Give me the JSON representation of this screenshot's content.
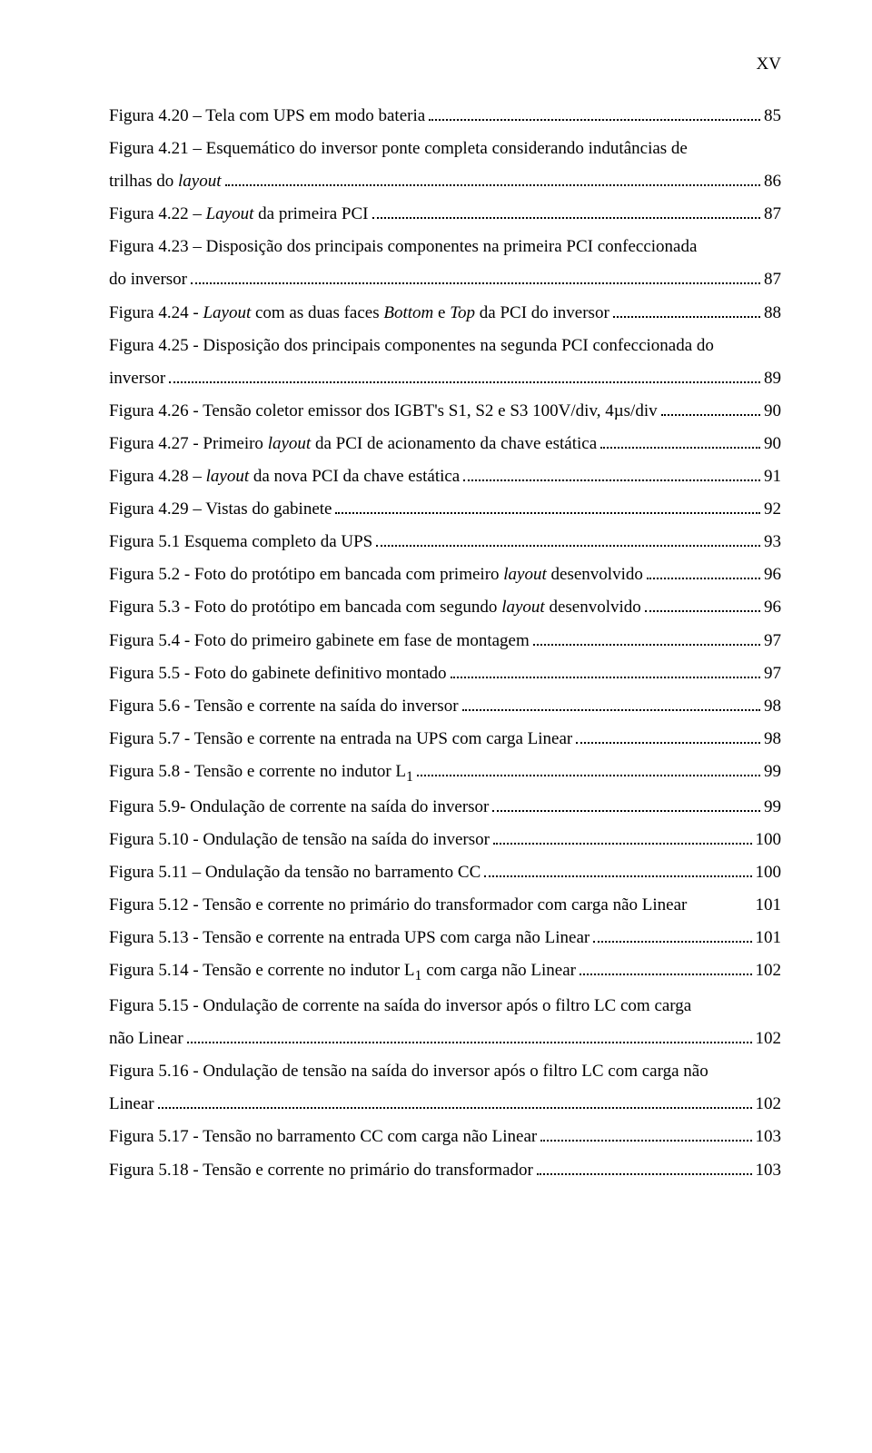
{
  "page_number": "XV",
  "font": {
    "family": "Times New Roman",
    "body_size_pt": 14,
    "line_height": 1.9,
    "text_color": "#000000",
    "background_color": "#ffffff"
  },
  "entries": [
    {
      "label": "Figura 4.20 – Tela com UPS em modo bateria",
      "page": "85",
      "multiline": false
    },
    {
      "label_first": "Figura 4.21 – Esquemático do inversor ponte completa considerando indutâncias de",
      "label_last": "trilhas do ",
      "label_last_italic": "layout",
      "page": "86",
      "multiline": true
    },
    {
      "label_pre": "Figura 4.22 – ",
      "label_italic": "Layout",
      "label_post": " da primeira PCI",
      "page": "87",
      "multiline": false
    },
    {
      "label_first": "Figura 4.23 – Disposição dos principais componentes na primeira PCI confeccionada",
      "label_last": "do inversor",
      "page": "87",
      "multiline": true
    },
    {
      "label_pre": "Figura 4.24 - ",
      "label_italic": "Layout",
      "label_post_pre": " com as duas faces ",
      "label_italic2": "Bottom",
      "label_post_mid": " e ",
      "label_italic3": "Top",
      "label_post_end": " da PCI do inversor",
      "page": "88",
      "multiline": false
    },
    {
      "label_first": "Figura 4.25 - Disposição dos principais componentes na segunda PCI confeccionada do",
      "label_last": "inversor",
      "page": "89",
      "multiline": true
    },
    {
      "label": "Figura 4.26 -  Tensão coletor emissor dos IGBT's S1, S2 e S3 100V/div, 4µs/div",
      "page": "90",
      "multiline": false
    },
    {
      "label_pre": "Figura 4.27 -  Primeiro ",
      "label_italic": "layout",
      "label_post": " da PCI de acionamento da chave estática",
      "page": "90",
      "multiline": false
    },
    {
      "label_pre": "Figura 4.28 – ",
      "label_italic": "layout",
      "label_post": " da nova PCI da chave estática",
      "page": "91",
      "multiline": false
    },
    {
      "label": "Figura 4.29 – Vistas do gabinete",
      "page": "92",
      "multiline": false
    },
    {
      "label": "Figura 5.1 Esquema completo da UPS",
      "page": "93",
      "multiline": false
    },
    {
      "label_pre": "Figura 5.2 - Foto do protótipo em bancada com primeiro ",
      "label_italic": "layout",
      "label_post": " desenvolvido",
      "page": "96",
      "multiline": false
    },
    {
      "label_pre": "Figura 5.3 - Foto do protótipo em bancada com segundo ",
      "label_italic": "layout",
      "label_post": " desenvolvido",
      "page": "96",
      "multiline": false
    },
    {
      "label": "Figura 5.4 - Foto do primeiro gabinete em fase de montagem",
      "page": "97",
      "multiline": false
    },
    {
      "label": "Figura 5.5 - Foto do gabinete definitivo montado",
      "page": "97",
      "multiline": false
    },
    {
      "label": "Figura 5.6 - Tensão e corrente na saída do inversor",
      "page": "98",
      "multiline": false
    },
    {
      "label": "Figura 5.7 - Tensão e corrente na entrada na UPS com carga Linear",
      "page": "98",
      "multiline": false
    },
    {
      "label_pre": "Figura 5.8 - Tensão e corrente no indutor L",
      "label_sub": "1",
      "page": "99",
      "multiline": false
    },
    {
      "label": "Figura 5.9- Ondulação de corrente na saída do inversor",
      "page": "99",
      "multiline": false
    },
    {
      "label": "Figura 5.10 - Ondulação de tensão na saída do inversor",
      "page": "100",
      "multiline": false
    },
    {
      "label": "Figura 5.11 – Ondulação da tensão no barramento CC",
      "page": "100",
      "multiline": false
    },
    {
      "label": "Figura 5.12 - Tensão e corrente no primário do transformador com carga não Linear",
      "page": "101",
      "multiline": false,
      "tight": true
    },
    {
      "label": "Figura 5.13 - Tensão e corrente na entrada UPS com carga não Linear",
      "page": "101",
      "multiline": false
    },
    {
      "label_pre": "Figura 5.14 - Tensão e corrente no indutor L",
      "label_sub": "1",
      "label_post": " com carga não Linear",
      "page": "102",
      "multiline": false
    },
    {
      "label_first": "Figura 5.15 - Ondulação de corrente na saída do inversor após o filtro LC com carga",
      "label_last": "não Linear",
      "page": "102",
      "multiline": true
    },
    {
      "label_first": "Figura 5.16 - Ondulação de tensão na saída do inversor após o filtro LC com carga não",
      "label_last": "Linear",
      "page": "102",
      "multiline": true
    },
    {
      "label": "Figura 5.17 - Tensão no barramento CC com carga não Linear",
      "page": "103",
      "multiline": false
    },
    {
      "label": "Figura 5.18 - Tensão e corrente no primário do transformador",
      "page": "103",
      "multiline": false
    }
  ]
}
